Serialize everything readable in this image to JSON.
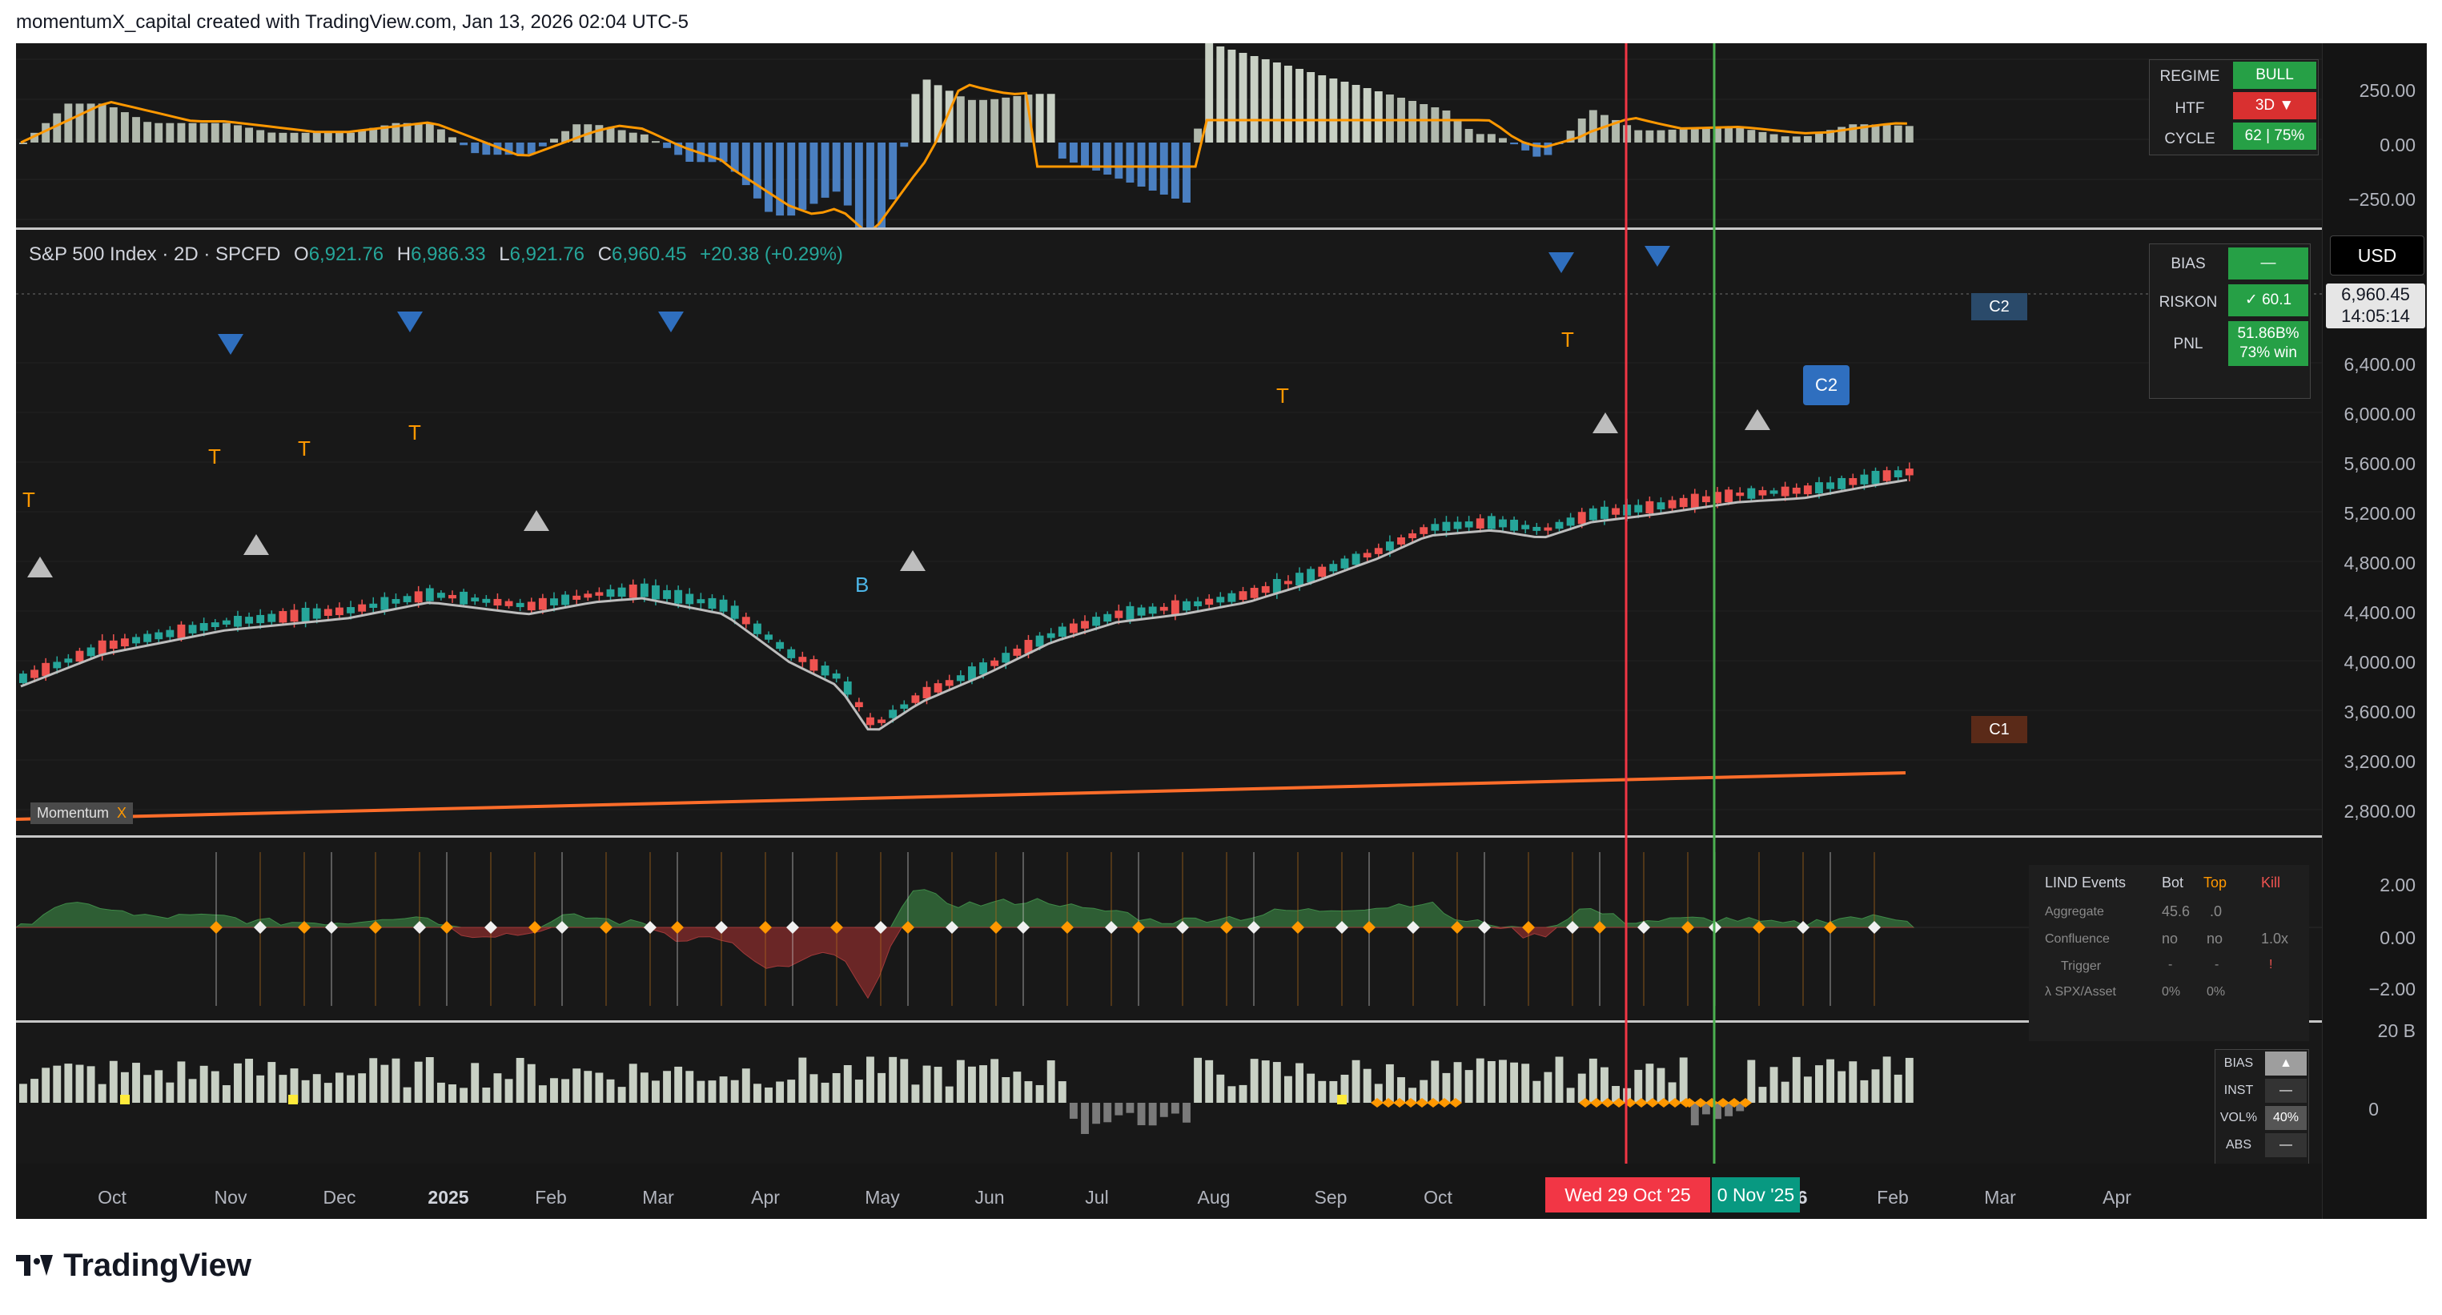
{
  "header": {
    "text": "momentumX_capital created with TradingView.com, Jan 13, 2026 02:04 UTC-5"
  },
  "brand": {
    "logo_text": "TradingView"
  },
  "top_pane": {
    "axis_labels": [
      "250.00",
      "0.00",
      "−250.00"
    ],
    "table": [
      {
        "label": "REGIME",
        "value": "BULL",
        "color": "#26a046"
      },
      {
        "label": "HTF",
        "value": "3D ▼",
        "color": "#d93030"
      },
      {
        "label": "CYCLE",
        "value": "62 | 75%",
        "color": "#26a046"
      }
    ]
  },
  "main_pane": {
    "symbol": "S&P 500 Index · 2D · SPCFD",
    "ohlc": {
      "o_label": "O",
      "o": "6,921.76",
      "h_label": "H",
      "h": "6,986.33",
      "l_label": "L",
      "l": "6,921.76",
      "c_label": "C",
      "c": "6,960.45",
      "change": "+20.38 (+0.29%)"
    },
    "currency": "USD",
    "last_price": "6,960.45",
    "countdown": "14:05:14",
    "axis_labels": [
      "6,400.00",
      "6,000.00",
      "5,600.00",
      "5,200.00",
      "4,800.00",
      "4,400.00",
      "4,000.00",
      "3,600.00",
      "3,200.00",
      "2,800.00"
    ],
    "table": [
      {
        "label": "BIAS",
        "value": "—"
      },
      {
        "label": "RISKON",
        "value": "✓ 60.1"
      },
      {
        "label": "PNL",
        "value": "51.86B%",
        "value2": "73% win"
      }
    ],
    "indicator_tag": "Momentum",
    "indicator_close": "X",
    "markers": {
      "c2_axis": "C2",
      "c2_callout": "C2",
      "c1": "C1",
      "buy": "B",
      "top": "T"
    }
  },
  "lind_pane": {
    "axis_labels": [
      "2.00",
      "0.00",
      "−2.00"
    ],
    "panel": {
      "title": "LIND Events",
      "col_bot": "Bot",
      "col_top": "Top",
      "col_kill": "Kill",
      "rows": [
        {
          "label": "Aggregate",
          "bot": "45.6",
          "top": ".0",
          "kill": ""
        },
        {
          "label": "Confluence",
          "bot": "no",
          "top": "no",
          "kill": "1.0x"
        },
        {
          "label": "Trigger",
          "bot": "-",
          "top": "-",
          "kill": "!"
        },
        {
          "label": "λ SPX/Asset",
          "bot": "0%",
          "top": "0%",
          "kill": ""
        }
      ]
    }
  },
  "vol_pane": {
    "axis_labels": [
      "20 B",
      "0"
    ],
    "table": [
      {
        "label": "BIAS",
        "value": "▲"
      },
      {
        "label": "INST",
        "value": "—"
      },
      {
        "label": "VOL%",
        "value": "40%"
      },
      {
        "label": "ABS",
        "value": "—"
      }
    ]
  },
  "time_axis": {
    "labels": [
      "Oct",
      "Nov",
      "Dec",
      "2025",
      "Feb",
      "Mar",
      "Apr",
      "May",
      "Jun",
      "Jul",
      "Aug",
      "Sep",
      "Oct",
      "2026",
      "Feb",
      "Mar",
      "Apr"
    ],
    "cursor_red": "Wed 29 Oct '25",
    "cursor_green": "0 Nov '25"
  },
  "colors": {
    "up": "#26a69a",
    "down": "#ef5350",
    "orange": "#ff9800",
    "histo_light": "#c8d0c4",
    "histo_blue": "#4a7fc1",
    "red_cursor": "#f23645",
    "green_cursor": "#4caf50"
  }
}
